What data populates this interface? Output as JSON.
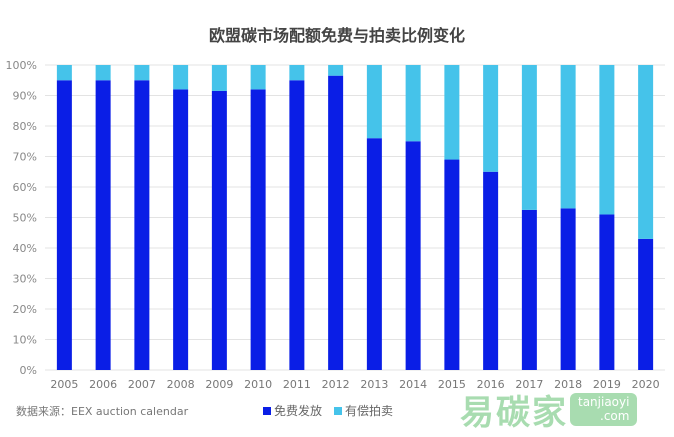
{
  "chart_data": {
    "type": "bar",
    "stacked": true,
    "title": "欧盟碳市场配额免费与拍卖比例变化",
    "categories": [
      "2005",
      "2006",
      "2007",
      "2008",
      "2009",
      "2010",
      "2011",
      "2012",
      "2013",
      "2014",
      "2015",
      "2016",
      "2017",
      "2018",
      "2019",
      "2020"
    ],
    "series": [
      {
        "name": "免费发放",
        "color": "#0a1ee6",
        "values": [
          95,
          95,
          95,
          92,
          91.5,
          92,
          95,
          96.5,
          76,
          75,
          69,
          65,
          52.5,
          53,
          51,
          43
        ]
      },
      {
        "name": "有偿拍卖",
        "color": "#45c3ea",
        "values": [
          5,
          5,
          5,
          8,
          8.5,
          8,
          5,
          3.5,
          24,
          25,
          31,
          35,
          47.5,
          47,
          49,
          57
        ]
      }
    ],
    "yticks": [
      "0%",
      "10%",
      "20%",
      "30%",
      "40%",
      "50%",
      "60%",
      "70%",
      "80%",
      "90%",
      "100%"
    ],
    "ylim": [
      0,
      100
    ],
    "grid": true,
    "legend": "bottom"
  },
  "source": "数据来源：EEX auction calendar",
  "watermark": {
    "logo": "易碳家",
    "site": "tanjiaoyi .com"
  }
}
